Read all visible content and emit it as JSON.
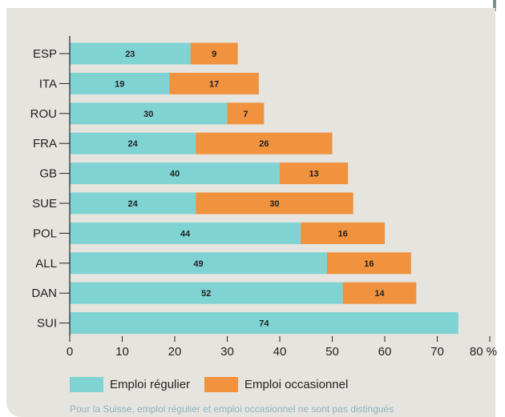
{
  "chart_data": {
    "type": "bar",
    "orientation": "horizontal",
    "stacked": true,
    "categories": [
      "ESP",
      "ITA",
      "ROU",
      "FRA",
      "GB",
      "SUE",
      "POL",
      "ALL",
      "DAN",
      "SUI"
    ],
    "series": [
      {
        "name": "Emploi régulier",
        "color": "#7fd3d3",
        "values": [
          23,
          19,
          30,
          24,
          40,
          24,
          44,
          49,
          52,
          74
        ]
      },
      {
        "name": "Emploi occasionnel",
        "color": "#f0923e",
        "values": [
          9,
          17,
          7,
          26,
          13,
          30,
          16,
          16,
          14,
          null
        ]
      }
    ],
    "xlim": [
      0,
      80
    ],
    "xticks": [
      "0",
      "10",
      "20",
      "30",
      "40",
      "50",
      "60",
      "70",
      "80 %"
    ],
    "grid": false,
    "legend_position": "bottom-left"
  },
  "note": "Pour la Suisse, emploi régulier et emploi occasionnel ne sont pas distingués"
}
